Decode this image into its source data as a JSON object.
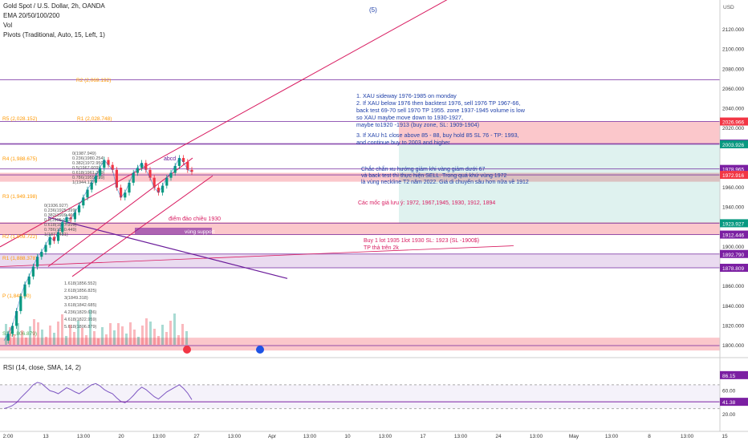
{
  "header": {
    "title": "Gold Spot / U.S. Dollar, 2h, OANDA",
    "ema": "EMA 20/50/100/200",
    "vol": "Vol",
    "pivots": "Pivots (Traditional, Auto, 15, Left, 1)",
    "wave_label": "(5)"
  },
  "rsi_header": "RSI (14, close, SMA, 14, 2)",
  "colors": {
    "price_badge_purple": "#7b1fa2",
    "price_badge_red": "#f23645",
    "price_badge_teal": "#089981",
    "pivot_r": "#ff9800",
    "pivot_s": "#4caf50",
    "annotation_blue": "#1e3fa8",
    "annotation_red": "#d81b60",
    "rsi_line": "#7e57c2",
    "trend_line": "#d81b60"
  },
  "price_axis": {
    "label": "USD",
    "ticks": [
      "2120.000",
      "2100.000",
      "2080.000",
      "2060.000",
      "2040.000",
      "2020.000",
      "1960.000",
      "1940.000",
      "1900.000",
      "1860.000",
      "1840.000",
      "1820.000",
      "1800.000"
    ]
  },
  "price_badges": [
    {
      "value": "2026.966",
      "color": "#f23645"
    },
    {
      "value": "2004.560",
      "color": "#7b1fa2"
    },
    {
      "value": "2003.926",
      "color": "#089981"
    },
    {
      "value": "1978.965",
      "color": "#7b1fa2"
    },
    {
      "value": "1972.916",
      "color": "#f23645"
    },
    {
      "value": "1923.927",
      "color": "#089981"
    },
    {
      "value": "1912.446",
      "color": "#7b1fa2"
    },
    {
      "value": "1892.790",
      "color": "#7b1fa2"
    },
    {
      "value": "1878.809",
      "color": "#7b1fa2"
    }
  ],
  "rsi_axis": {
    "ticks": [
      "60.00",
      "20.00"
    ],
    "badges": [
      {
        "value": "86.15",
        "color": "#7b1fa2"
      },
      {
        "value": "41.38",
        "color": "#7b1fa2"
      }
    ]
  },
  "time_axis": [
    "2:00",
    "13",
    "13:00",
    "20",
    "13:00",
    "27",
    "13:00",
    "Apr",
    "13:00",
    "10",
    "13:00",
    "17",
    "13:00",
    "24",
    "13:00",
    "May",
    "13:00",
    "8",
    "13:00",
    "15"
  ],
  "pivot_labels": [
    "R2 (2,069.192)",
    "R5 (2,028.152)",
    "R1 (2,028.748)",
    "R4 (1,988.675)",
    "R3 (1,949.198)",
    "R2 (1,909.722)",
    "R1 (1,888.378)",
    "P (1,848.90)",
    "S1 (1,806.879)"
  ],
  "fib_labels": [
    "0(1987.949)",
    "0.236(1980.254)",
    "0.382(1972.950)",
    "0.5(1967.609)",
    "0.618(1961.309)",
    "0.786(1955.299)",
    "1(1944.127)",
    "0(1936.927)",
    "0.236(1925.399)",
    "0.382(1909.400)",
    "0.5(1905.123)",
    "0.618(1897.999)",
    "0.786(1880.449)",
    "1(1877.431)",
    "1.618(1856.552)",
    "2.618(1856.825)",
    "3(1849.318)",
    "3.618(1842.685)",
    "4.236(1829.636)",
    "4.618(1822.959)",
    "5.618(1806.879)"
  ],
  "chart_marks": [
    "abcd",
    "điểm đảo chiều 1930",
    "vùng support"
  ],
  "annotations": {
    "blue_plan": [
      "1. XAU sideway 1976-1985 on monday",
      "2. If XAU below 1976 then backtest 1976, sell 1976 TP 1967-66,",
      "back test 69-70 sell 1970 TP 1955. zone 1937-1945 volume is low",
      "so XAU maybe move down to 1930-1927,",
      "maybe to1920 -1913 (buy zone, SL: 1909-1904)",
      "3. If XAU h1 close above 85 - 88, buy hold 85 SL 76 - TP: 1993,",
      "and continue buy to 2003 and higher"
    ],
    "vn_plan": [
      "Chắc chắn xu hướng giảm khi vàng giảm dưới 67",
      "và back test thì thực hiện SELL. Trong quá khứ vùng 1972",
      "là vùng neckline T2 năm 2022. Giá di chuyển sâu hơn nữa về 1912"
    ],
    "levels_note": "Các mốc giá lưu ý: 1972, 1967,1945, 1930, 1912, 1894",
    "buy_plan": [
      "Buy 1 lot 1935 1lot 1930 SL: 1923 (SL -1900$)",
      "TP thả trên 2k"
    ]
  },
  "chart_data": {
    "type": "candlestick",
    "title": "Gold Spot / U.S. Dollar, 2h, OANDA",
    "y_unit": "USD",
    "ylim": [
      1790,
      2135
    ],
    "levels": [
      1800,
      1878.809,
      1892.79,
      1912.446,
      1923.927,
      1972.916,
      1978.965,
      2003.926,
      2004.56,
      2026.966,
      2069.192
    ],
    "zones": [
      {
        "from": 1966,
        "to": 1975,
        "color": "red"
      },
      {
        "from": 1912,
        "to": 1925,
        "color": "red"
      },
      {
        "from": 1878.8,
        "to": 1892.8,
        "color": "purple"
      },
      {
        "from": 1795,
        "to": 1808,
        "color": "red"
      },
      {
        "from": 2004,
        "to": 2027,
        "color": "red"
      },
      {
        "from": 1924,
        "to": 2004,
        "color": "teal"
      }
    ],
    "price_series": [
      1805,
      1812,
      1820,
      1835,
      1850,
      1862,
      1870,
      1880,
      1890,
      1895,
      1902,
      1910,
      1906,
      1915,
      1925,
      1930,
      1928,
      1935,
      1942,
      1950,
      1958,
      1965,
      1972,
      1980,
      1988,
      1983,
      1978,
      1960,
      1950,
      1955,
      1965,
      1975,
      1980,
      1985,
      1978,
      1970,
      1960,
      1955,
      1962,
      1970,
      1975,
      1982,
      1990,
      1986,
      1978,
      1976
    ],
    "rsi": {
      "ylim": [
        10,
        95
      ],
      "upper": 70,
      "lower": 30,
      "values": [
        30,
        32,
        35,
        40,
        48,
        55,
        62,
        70,
        74,
        72,
        66,
        60,
        58,
        55,
        60,
        65,
        62,
        58,
        55,
        60,
        65,
        70,
        72,
        68,
        62,
        58,
        55,
        48,
        42,
        40,
        45,
        52,
        60,
        66,
        62,
        56,
        50,
        46,
        52,
        58,
        62,
        66,
        70,
        64,
        56,
        45
      ]
    }
  }
}
